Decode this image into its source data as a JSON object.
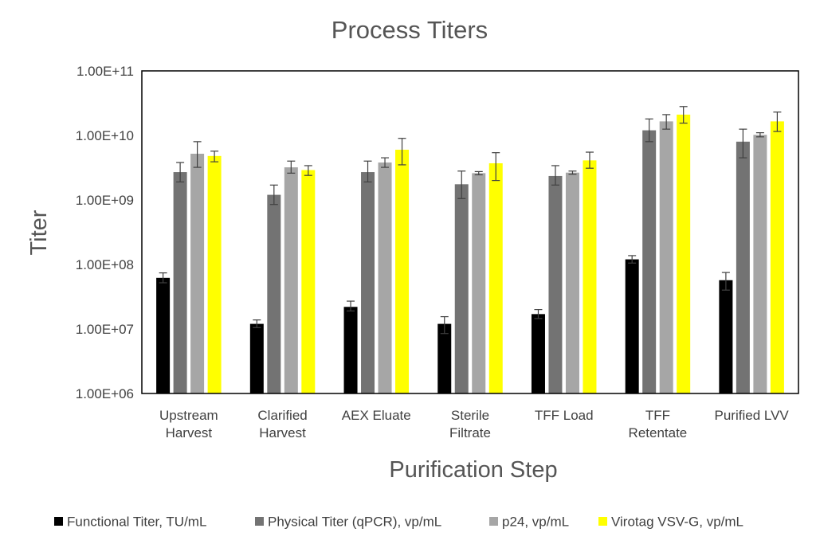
{
  "chart_data": {
    "type": "bar",
    "title": "Process Titers",
    "xlabel": "Purification Step",
    "ylabel": "Titer",
    "yscale": "log",
    "ylim": [
      1000000,
      100000000000
    ],
    "yticks": [
      "1.00E+06",
      "1.00E+07",
      "1.00E+08",
      "1.00E+09",
      "1.00E+10",
      "1.00E+11"
    ],
    "grid": false,
    "legend_position": "bottom",
    "categories": [
      [
        "Upstream",
        "Harvest"
      ],
      [
        "Clarified",
        "Harvest"
      ],
      [
        "AEX Eluate"
      ],
      [
        "Sterile",
        "Filtrate"
      ],
      [
        "TFF Load"
      ],
      [
        "TFF",
        "Retentate"
      ],
      [
        "Purified LVV"
      ]
    ],
    "series": [
      {
        "name": "Functional Titer, TU/mL",
        "color": "#000000",
        "values": [
          62000000,
          12000000,
          22000000,
          12000000,
          17000000,
          120000000,
          57000000
        ],
        "err_low": [
          52000000,
          10500000,
          19000000,
          8500000,
          14500000,
          105000000,
          40000000
        ],
        "err_high": [
          74000000,
          13800000,
          27000000,
          15500000,
          20000000,
          137000000,
          75000000
        ]
      },
      {
        "name": "Physical Titer (qPCR), vp/mL",
        "color": "#737373",
        "values": [
          2700000000,
          1200000000,
          2700000000,
          1750000000,
          2350000000,
          12000000000,
          8000000000
        ],
        "err_low": [
          1900000000,
          850000000,
          1900000000,
          1050000000,
          1700000000,
          8000000000,
          4500000000
        ],
        "err_high": [
          3800000000,
          1700000000,
          4000000000,
          2800000000,
          3400000000,
          18000000000,
          12500000000
        ]
      },
      {
        "name": "p24, vp/mL",
        "color": "#a6a6a6",
        "values": [
          5200000000,
          3200000000,
          3800000000,
          2600000000,
          2650000000,
          16500000000,
          10200000000
        ],
        "err_low": [
          3200000000,
          2600000000,
          3200000000,
          2450000000,
          2500000000,
          12500000000,
          9500000000
        ],
        "err_high": [
          8000000000,
          4000000000,
          4500000000,
          2750000000,
          2800000000,
          21000000000,
          11000000000
        ]
      },
      {
        "name": "Virotag VSV-G, vp/mL",
        "color": "#ffff00",
        "values": [
          4800000000,
          2900000000,
          6000000000,
          3700000000,
          4100000000,
          21000000000,
          16500000000
        ],
        "err_low": [
          3900000000,
          2400000000,
          3500000000,
          2000000000,
          3100000000,
          15500000000,
          11500000000
        ],
        "err_high": [
          5700000000,
          3400000000,
          9000000000,
          5400000000,
          5500000000,
          28000000000,
          23000000000
        ]
      }
    ]
  }
}
